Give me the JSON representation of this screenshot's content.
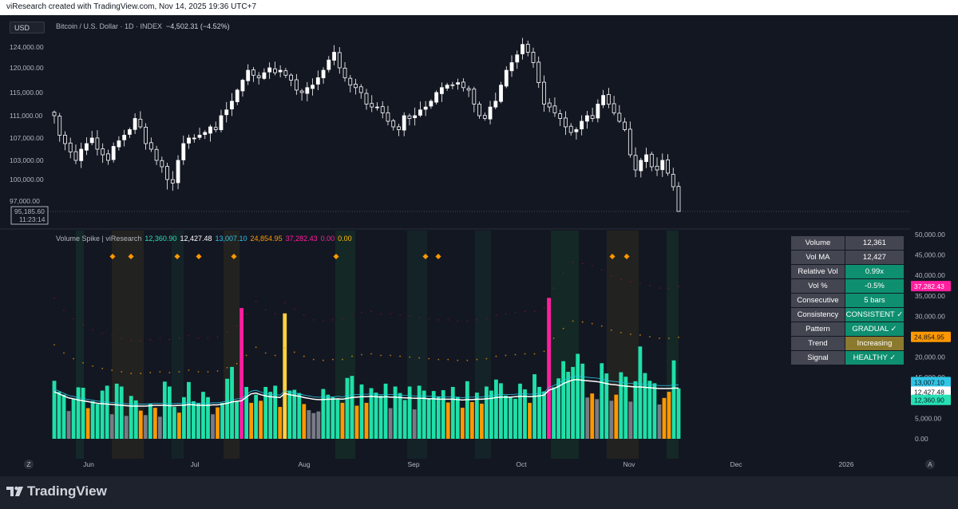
{
  "header": {
    "attribution": "viResearch created with TradingView.com, Nov 14, 2025 19:36 UTC+7"
  },
  "toolbar": {
    "currency": "USD"
  },
  "symbol": {
    "name": "Bitcoin / U.S. Dollar · 1D · INDEX",
    "change": "−4,502.31 (−4.52%)"
  },
  "price_axis": {
    "ticks": [
      "124,000.00",
      "120,000.00",
      "115,000.00",
      "111,000.00",
      "107,000.00",
      "103,000.00",
      "100,000.00",
      "97,000.00"
    ],
    "current_price": "95,185.60",
    "countdown": "11:23:14"
  },
  "indicator": {
    "name": "Volume Spike | viResearch",
    "values": [
      {
        "text": "12,360.90",
        "color": "#26e0b4"
      },
      {
        "text": "12,427.48",
        "color": "#ffffff"
      },
      {
        "text": "13,007.10",
        "color": "#2ec5e6"
      },
      {
        "text": "24,854.95",
        "color": "#ff9800"
      },
      {
        "text": "37,282.43",
        "color": "#ff1f9f"
      },
      {
        "text": "0.00",
        "color": "#ff1f9f"
      },
      {
        "text": "0.00",
        "color": "#ffc107"
      }
    ]
  },
  "volume_axis": {
    "ticks": [
      "50,000.00",
      "45,000.00",
      "40,000.00",
      "35,000.00",
      "30,000.00",
      "25,000.00",
      "20,000.00",
      "15,000.00",
      "10,000.00",
      "5,000.00",
      "0.00"
    ],
    "labels": [
      {
        "text": "37,282.43",
        "bg": "#ff1f9f",
        "fg": "#ffffff"
      },
      {
        "text": "24,854.95",
        "bg": "#ff9800",
        "fg": "#131722"
      },
      {
        "text": "13,007.10",
        "bg": "#2ec5e6",
        "fg": "#131722"
      },
      {
        "text": "12,427.48",
        "bg": "#ffffff",
        "fg": "#131722"
      },
      {
        "text": "12,360.90",
        "bg": "#26e0b4",
        "fg": "#131722"
      }
    ]
  },
  "stats_table": [
    {
      "key": "Volume",
      "value": "12,361",
      "color": "#434651"
    },
    {
      "key": "Vol MA",
      "value": "12,427",
      "color": "#434651"
    },
    {
      "key": "Relative Vol",
      "value": "0.99x",
      "color": "#0e8f6f"
    },
    {
      "key": "Vol %",
      "value": "-0.5%",
      "color": "#0e8f6f"
    },
    {
      "key": "Consecutive",
      "value": "5 bars",
      "color": "#0e8f6f"
    },
    {
      "key": "Consistency",
      "value": "CONSISTENT ✓",
      "color": "#0e8f6f"
    },
    {
      "key": "Pattern",
      "value": "GRADUAL ✓",
      "color": "#0e8f6f"
    },
    {
      "key": "Trend",
      "value": "Increasing",
      "color": "#8b7a2e"
    },
    {
      "key": "Signal",
      "value": "HEALTHY ✓",
      "color": "#0e8f6f"
    }
  ],
  "time_axis": {
    "labels": [
      "Jun",
      "Jul",
      "Aug",
      "Sep",
      "Oct",
      "Nov",
      "Dec",
      "2026"
    ],
    "left_btn": "Z",
    "right_btn": "A"
  },
  "footer": {
    "brand": "TradingView"
  },
  "chart_data": {
    "type": "candlestick",
    "title": "Bitcoin / U.S. Dollar · 1D · INDEX",
    "x": [
      "2025-05-22",
      "2025-11-14"
    ],
    "ylim": [
      95000,
      126000
    ],
    "close_path": [
      111000,
      107500,
      106000,
      104500,
      103000,
      105000,
      106000,
      107000,
      105000,
      104000,
      103000,
      105500,
      106500,
      107500,
      108500,
      110500,
      109000,
      106000,
      105000,
      103000,
      102000,
      100000,
      99500,
      103000,
      106000,
      107000,
      107000,
      107500,
      108000,
      109000,
      108500,
      111000,
      112000,
      113500,
      115500,
      117500,
      119500,
      118500,
      118000,
      119000,
      120000,
      119000,
      119500,
      118500,
      117500,
      115500,
      115000,
      116000,
      116500,
      118000,
      119500,
      121500,
      123000,
      120000,
      118000,
      116500,
      116000,
      115000,
      113000,
      112500,
      112500,
      111500,
      110000,
      109000,
      108500,
      111000,
      110500,
      111000,
      112000,
      112500,
      113500,
      115000,
      116000,
      116500,
      116500,
      117000,
      116000,
      115500,
      113000,
      111000,
      110500,
      112500,
      113500,
      116500,
      119500,
      121000,
      122500,
      124500,
      123000,
      121000,
      117000,
      113000,
      112500,
      111500,
      110500,
      109000,
      108000,
      108500,
      110000,
      111000,
      110500,
      113000,
      114500,
      113000,
      111500,
      110000,
      108500,
      104000,
      101500,
      103000,
      104000,
      102000,
      101500,
      103000,
      101000,
      99000,
      95185
    ],
    "volume_ylim": [
      0,
      50000
    ],
    "volume_series": [
      {
        "name": "Volume",
        "values": [
          14200,
          11500,
          10800,
          6800,
          9800,
          12600,
          12500,
          7500,
          9200,
          8500,
          11800,
          13000,
          6000,
          13500,
          12800,
          5600,
          10500,
          9400,
          6900,
          5800,
          8600,
          7600,
          5400,
          14000,
          12800,
          7800,
          6400,
          10200,
          13900,
          9200,
          8800,
          11500,
          10200,
          6000,
          7700,
          8800,
          14700,
          17600,
          9200,
          32000,
          12700,
          8800,
          10800,
          9300,
          12700,
          11500,
          13000,
          7800,
          30700,
          11800,
          12000,
          11200,
          8500,
          7000,
          6300,
          6700,
          12200,
          10800,
          10200,
          9800,
          8800,
          14900,
          15400,
          8100,
          13300,
          8800,
          12400,
          11300,
          10600,
          13500,
          7500,
          12800,
          11200,
          9500,
          12800,
          7200,
          13000,
          11800,
          9900,
          11700,
          10400,
          11900,
          8900,
          12700,
          10300,
          7600,
          14100,
          9000,
          11300,
          8600,
          12800,
          11800,
          14500,
          13600,
          10600,
          10100,
          9800,
          13500,
          12100,
          8800,
          15800,
          12700,
          11600,
          34500,
          12600,
          14800,
          19000,
          16400,
          17600,
          20800,
          18400,
          10100,
          11100,
          9700,
          18500,
          16000,
          9300,
          10800,
          16300,
          15200,
          9100,
          14100,
          22600,
          16100,
          14200,
          13600,
          8400,
          10000,
          11500,
          19200,
          12361
        ]
      },
      {
        "name": "Vol MA",
        "values": [
          11500,
          11000,
          10500,
          10000,
          9800,
          9500,
          9300,
          9100,
          8900,
          8700,
          8600,
          8500,
          8400,
          8300,
          8200,
          8100,
          8000,
          8000,
          8000,
          8000,
          8100,
          8200,
          8200,
          8200,
          8100,
          8100,
          8200,
          8200,
          8400,
          8300,
          8200,
          8200,
          8200,
          8300,
          8300,
          8500,
          8700,
          9000,
          9200,
          9300,
          10200,
          11000,
          11200,
          10800,
          10500,
          10300,
          10200,
          10100,
          11100,
          10800,
          10600,
          10400,
          10100,
          9900,
          9700,
          9600,
          9600,
          9700,
          9700,
          9800,
          9700,
          9900,
          10100,
          10200,
          10300,
          10300,
          10400,
          10300,
          10200,
          10300,
          10200,
          10200,
          10100,
          10000,
          10000,
          9900,
          9900,
          9900,
          9800,
          9800,
          9700,
          9700,
          9700,
          9700,
          9600,
          9500,
          9600,
          9600,
          9700,
          9700,
          9800,
          9900,
          10100,
          10200,
          10200,
          10200,
          10300,
          10400,
          10400,
          10300,
          10400,
          10500,
          10700,
          11900,
          12300,
          12800,
          13500,
          14000,
          14400,
          14500,
          14300,
          14200,
          14100,
          14000,
          13800,
          13500,
          13300,
          13200,
          13000,
          12900,
          12800,
          12700,
          12700,
          12600,
          12500,
          12400,
          12300,
          12300,
          12300,
          12400,
          12427
        ]
      },
      {
        "name": "Upper band 1",
        "values": [
          24854.95
        ]
      },
      {
        "name": "Upper band 2",
        "values": [
          37282.43
        ]
      }
    ]
  }
}
